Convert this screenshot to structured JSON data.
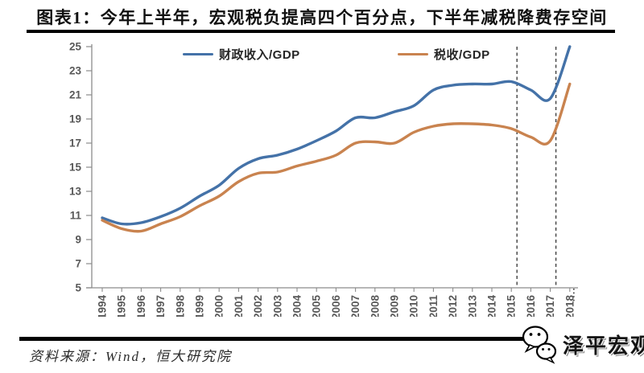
{
  "header": {
    "title": "图表1：今年上半年，宏观税负提高四个百分点，下半年减税降费存空间"
  },
  "footer": {
    "source_label": "资料来源：Wind，恒大研究院",
    "brand": "泽平宏观"
  },
  "colors": {
    "fiscal_line": "#4472a8",
    "tax_line": "#c9834f",
    "axis": "#8c8c8c",
    "tick_label": "#595959",
    "rule": "#000000"
  },
  "chart_data": {
    "type": "line",
    "title": "图表1：今年上半年，宏观税负提高四个百分点，下半年减税降费存空间",
    "x": [
      1994,
      1995,
      1996,
      1997,
      1998,
      1999,
      2000,
      2001,
      2002,
      2003,
      2004,
      2005,
      2006,
      2007,
      2008,
      2009,
      2010,
      2011,
      2012,
      2013,
      2014,
      2015,
      2016,
      2017,
      2018
    ],
    "series": [
      {
        "name": "财政收入/GDP",
        "color": "#4472a8",
        "values": [
          10.8,
          10.3,
          10.4,
          10.9,
          11.6,
          12.6,
          13.5,
          14.9,
          15.7,
          16.0,
          16.5,
          17.2,
          18.0,
          19.1,
          19.1,
          19.6,
          20.1,
          21.4,
          21.8,
          21.9,
          21.9,
          22.1,
          21.4,
          20.7,
          25.0
        ]
      },
      {
        "name": "税收/GDP",
        "color": "#c9834f",
        "values": [
          10.6,
          9.9,
          9.7,
          10.3,
          10.9,
          11.8,
          12.6,
          13.8,
          14.5,
          14.6,
          15.1,
          15.5,
          16.0,
          17.0,
          17.1,
          17.0,
          17.9,
          18.4,
          18.6,
          18.6,
          18.5,
          18.2,
          17.5,
          17.2,
          21.9
        ]
      }
    ],
    "xlabel": "",
    "ylabel": "",
    "ylim": [
      5,
      25
    ],
    "yticks": [
      5,
      7,
      9,
      11,
      13,
      15,
      17,
      19,
      21,
      23,
      25
    ],
    "dashed_vlines_x": [
      2015,
      2017
    ],
    "dotted_mark_x": 2018,
    "legend_position": "top",
    "grid": false
  }
}
